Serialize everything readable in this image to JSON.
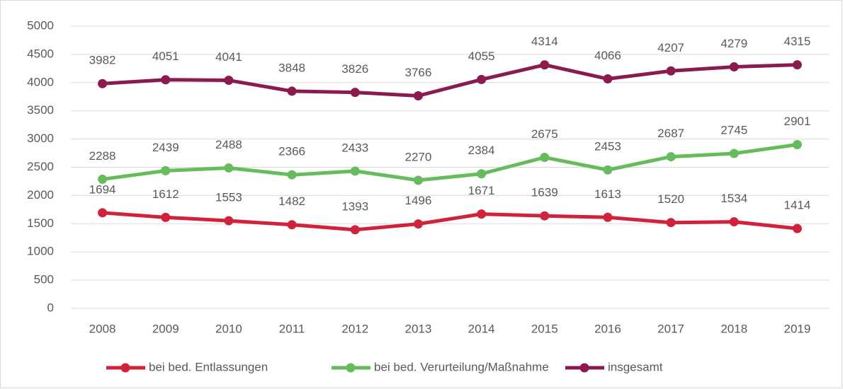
{
  "chart_data": {
    "type": "line",
    "categories": [
      "2008",
      "2009",
      "2010",
      "2011",
      "2012",
      "2013",
      "2014",
      "2015",
      "2016",
      "2017",
      "2018",
      "2019"
    ],
    "series": [
      {
        "name": "bei bed. Entlassungen",
        "color": "#d0223a",
        "values": [
          1694,
          1612,
          1553,
          1482,
          1393,
          1496,
          1671,
          1639,
          1613,
          1520,
          1534,
          1414
        ]
      },
      {
        "name": "bei bed. Verurteilung/Maßnahme",
        "color": "#66bb5c",
        "values": [
          2288,
          2439,
          2488,
          2366,
          2433,
          2270,
          2384,
          2675,
          2453,
          2687,
          2745,
          2901
        ]
      },
      {
        "name": "insgesamt",
        "color": "#8b1a4f",
        "values": [
          3982,
          4051,
          4041,
          3848,
          3826,
          3766,
          4055,
          4314,
          4066,
          4207,
          4279,
          4315
        ]
      }
    ],
    "ylim": [
      0,
      5000
    ],
    "yticks": [
      0,
      500,
      1000,
      1500,
      2000,
      2500,
      3000,
      3500,
      4000,
      4500,
      5000
    ],
    "grid": true,
    "legend": "bottom"
  }
}
